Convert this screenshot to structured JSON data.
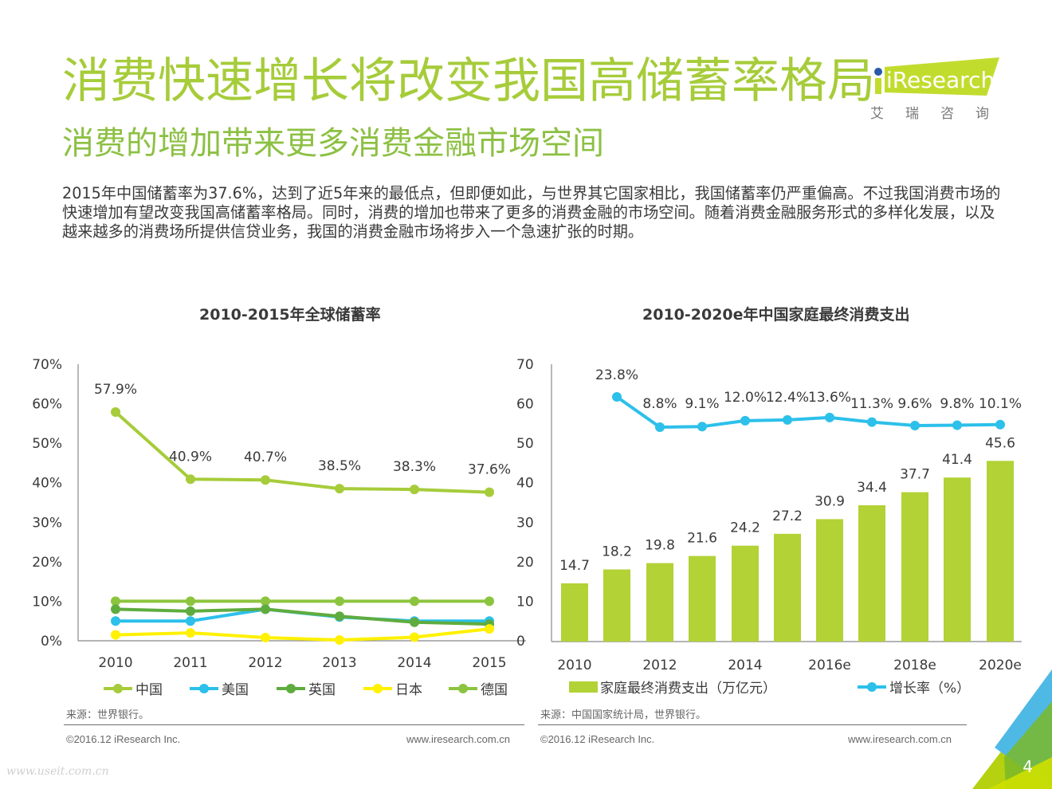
{
  "header": {
    "title": "消费快速增长将改变我国高储蓄率格局",
    "subtitle": "消费的增加带来更多消费金融市场空间",
    "body": "2015年中国储蓄率为37.6%，达到了近5年来的最低点，但即便如此，与世界其它国家相比，我国储蓄率仍严重偏高。不过我国消费市场的快速增加有望改变我国高储蓄率格局。同时，消费的增加也带来了更多的消费金融的市场空间。随着消费金融服务形式的多样化发展，以及越来越多的消费场所提供信贷业务，我国的消费金融市场将步入一个急速扩张的时期。"
  },
  "logo": {
    "brand": "iResearch",
    "cn": "艾瑞咨询",
    "colors": {
      "green": "#c2dc2e",
      "dot": "#2a5aa8"
    }
  },
  "colors": {
    "title_green": "#a6cc3a",
    "subtitle_green": "#8cc043",
    "china": "#a6cc3a",
    "usa": "#2cc0ea",
    "uk": "#5fac3e",
    "japan": "#fff100",
    "germany": "#8cc43f",
    "bar": "#b2d235",
    "growth": "#2cc0ea"
  },
  "chart_data": [
    {
      "type": "line",
      "title": "2010-2015年全球储蓄率",
      "x": [
        "2010",
        "2011",
        "2012",
        "2013",
        "2014",
        "2015"
      ],
      "ylim": [
        0,
        70
      ],
      "yticks_left": [
        "0%",
        "10%",
        "20%",
        "30%",
        "40%",
        "50%",
        "60%",
        "70%"
      ],
      "yticks_right": [
        "0",
        "10",
        "20",
        "30",
        "40",
        "50",
        "60",
        "70"
      ],
      "grid": false,
      "legend_position": "bottom",
      "series": [
        {
          "name": "中国",
          "key": "china",
          "values": [
            57.9,
            40.9,
            40.7,
            38.5,
            38.3,
            37.6
          ],
          "labels": [
            "57.9%",
            "40.9%",
            "40.7%",
            "38.5%",
            "38.3%",
            "37.6%"
          ]
        },
        {
          "name": "美国",
          "key": "usa",
          "values": [
            5.0,
            5.0,
            8.0,
            6.0,
            5.0,
            5.0
          ]
        },
        {
          "name": "英国",
          "key": "uk",
          "values": [
            8.0,
            7.5,
            8.0,
            6.2,
            4.7,
            4.2
          ]
        },
        {
          "name": "日本",
          "key": "japan",
          "values": [
            1.5,
            2.0,
            0.8,
            0.2,
            0.9,
            3.0
          ]
        },
        {
          "name": "德国",
          "key": "germany",
          "values": [
            10.0,
            10.0,
            10.0,
            10.0,
            10.0,
            10.0
          ]
        }
      ],
      "source": "来源：世界银行。"
    },
    {
      "type": "bar",
      "title": "2010-2020e年中国家庭最终消费支出",
      "categories": [
        "2010",
        "2011",
        "2012",
        "2013",
        "2014",
        "2015",
        "2016e",
        "2017e",
        "2018e",
        "2019e",
        "2020e"
      ],
      "xtick_labels": [
        "2010",
        "2012",
        "2014",
        "2016e",
        "2018e",
        "2020e"
      ],
      "ylim": [
        0,
        70
      ],
      "yticks": [
        "0",
        "10",
        "20",
        "30",
        "40",
        "50",
        "60",
        "70"
      ],
      "grid": false,
      "legend_position": "bottom",
      "series": [
        {
          "name": "家庭最终消费支出（万亿元）",
          "type": "bar",
          "values": [
            14.7,
            18.2,
            19.8,
            21.6,
            24.2,
            27.2,
            30.9,
            34.4,
            37.7,
            41.4,
            45.6
          ],
          "labels": [
            "14.7",
            "18.2",
            "19.8",
            "21.6",
            "24.2",
            "27.2",
            "30.9",
            "34.4",
            "37.7",
            "41.4",
            "45.6"
          ]
        },
        {
          "name": "增长率（%）",
          "type": "line",
          "values": [
            null,
            23.8,
            8.8,
            9.1,
            12.0,
            12.4,
            13.6,
            11.3,
            9.6,
            9.8,
            10.1
          ],
          "labels": [
            "",
            "23.8%",
            "8.8%",
            "9.1%",
            "12.0%",
            "12.4%",
            "13.6%",
            "11.3%",
            "9.6%",
            "9.8%",
            "10.1%"
          ]
        }
      ],
      "source": "来源：中国国家统计局，世界银行。"
    }
  ],
  "footer": {
    "copyright": "©2016.12 iResearch Inc.",
    "website": "www.iresearch.com.cn",
    "page_number": "4",
    "watermark": "www.useit.com.cn"
  }
}
